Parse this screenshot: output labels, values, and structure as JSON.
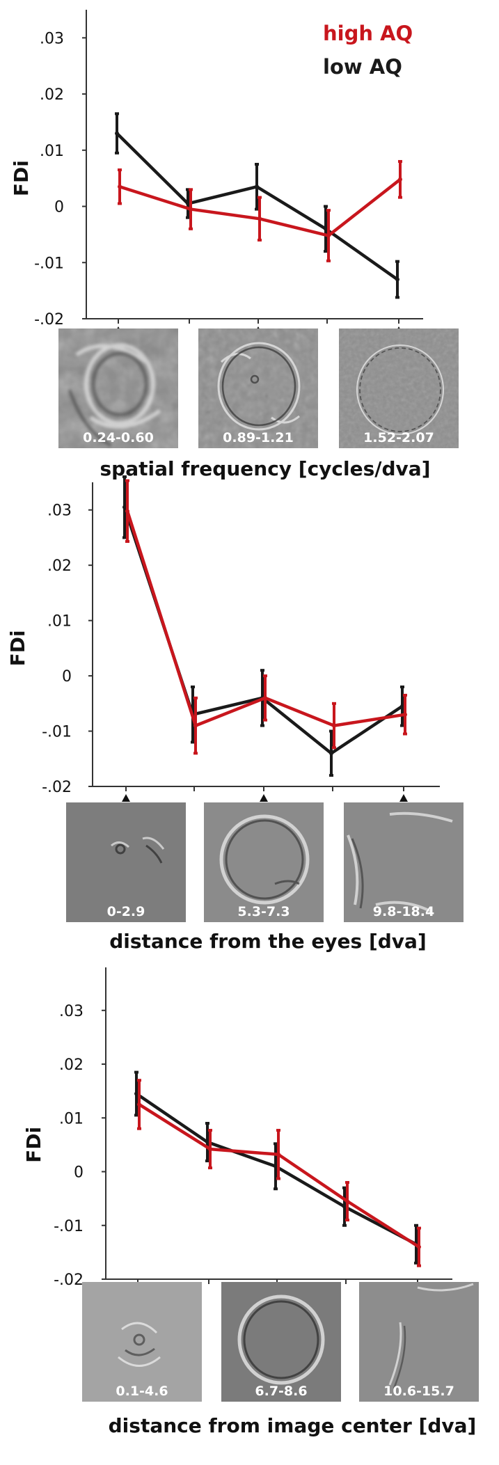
{
  "legend": {
    "items": [
      {
        "label": "high AQ",
        "color": "#c8161d"
      },
      {
        "label": "low AQ",
        "color": "#1a1a1a"
      }
    ],
    "placement": "top-right"
  },
  "colors": {
    "high": "#c8161d",
    "low": "#1a1a1a",
    "axis": "#333333"
  },
  "chart_data": [
    {
      "type": "line",
      "ylabel": "FDi",
      "xlabel": "spatial frequency [cycles/dva]",
      "ylim": [
        -0.02,
        0.035
      ],
      "yticks": [
        0.03,
        0.02,
        0.01,
        0,
        -0.01,
        -0.02
      ],
      "ytick_labels": [
        ".03",
        ".02",
        ".01",
        "0",
        "-.01",
        "-.02"
      ],
      "x": [
        1,
        2,
        3,
        4,
        5
      ],
      "image_labels": [
        "0.24-0.60",
        "0.89-1.21",
        "1.52-2.07"
      ],
      "series": [
        {
          "name": "low AQ",
          "color": "#1a1a1a",
          "values": [
            0.013,
            0.0005,
            0.0035,
            -0.004,
            -0.013
          ],
          "err": [
            0.0035,
            0.0025,
            0.004,
            0.004,
            0.0032
          ]
        },
        {
          "name": "high AQ",
          "color": "#c8161d",
          "values": [
            0.0035,
            -0.0005,
            -0.0022,
            -0.0052,
            0.0048
          ],
          "err": [
            0.003,
            0.0035,
            0.0038,
            0.0045,
            0.0032
          ]
        }
      ]
    },
    {
      "type": "line",
      "ylabel": "FDi",
      "xlabel": "distance from the eyes [dva]",
      "ylim": [
        -0.02,
        0.035
      ],
      "yticks": [
        0.03,
        0.02,
        0.01,
        0,
        -0.01,
        -0.02
      ],
      "ytick_labels": [
        ".03",
        ".02",
        ".01",
        "0",
        "-.01",
        "-.02"
      ],
      "x": [
        1,
        2,
        3,
        4,
        5
      ],
      "image_labels": [
        "0-2.9",
        "5.3-7.3",
        "9.8-18.4"
      ],
      "series": [
        {
          "name": "low AQ",
          "color": "#1a1a1a",
          "values": [
            0.0305,
            -0.007,
            -0.004,
            -0.014,
            -0.0055
          ],
          "err": [
            0.0055,
            0.005,
            0.005,
            0.004,
            0.0035
          ]
        },
        {
          "name": "high AQ",
          "color": "#c8161d",
          "values": [
            0.0298,
            -0.009,
            -0.004,
            -0.009,
            -0.007
          ],
          "err": [
            0.0055,
            0.005,
            0.004,
            0.004,
            0.0035
          ]
        }
      ]
    },
    {
      "type": "line",
      "ylabel": "FDi",
      "xlabel": "distance from image center [dva]",
      "ylim": [
        -0.02,
        0.038
      ],
      "yticks": [
        0.03,
        0.02,
        0.01,
        0,
        -0.01,
        -0.02
      ],
      "ytick_labels": [
        ".03",
        ".02",
        ".01",
        "0",
        "-.01",
        "-.02"
      ],
      "x": [
        1,
        2,
        3,
        4,
        5
      ],
      "image_labels": [
        "0.1-4.6",
        "6.7-8.6",
        "10.6-15.7"
      ],
      "series": [
        {
          "name": "low AQ",
          "color": "#1a1a1a",
          "values": [
            0.0145,
            0.0055,
            0.001,
            -0.0065,
            -0.0135
          ],
          "err": [
            0.004,
            0.0035,
            0.0042,
            0.0035,
            0.0035
          ]
        },
        {
          "name": "high AQ",
          "color": "#c8161d",
          "values": [
            0.0125,
            0.0042,
            0.0032,
            -0.0055,
            -0.014
          ],
          "err": [
            0.0045,
            0.0035,
            0.0045,
            0.0035,
            0.0035
          ]
        }
      ]
    }
  ]
}
